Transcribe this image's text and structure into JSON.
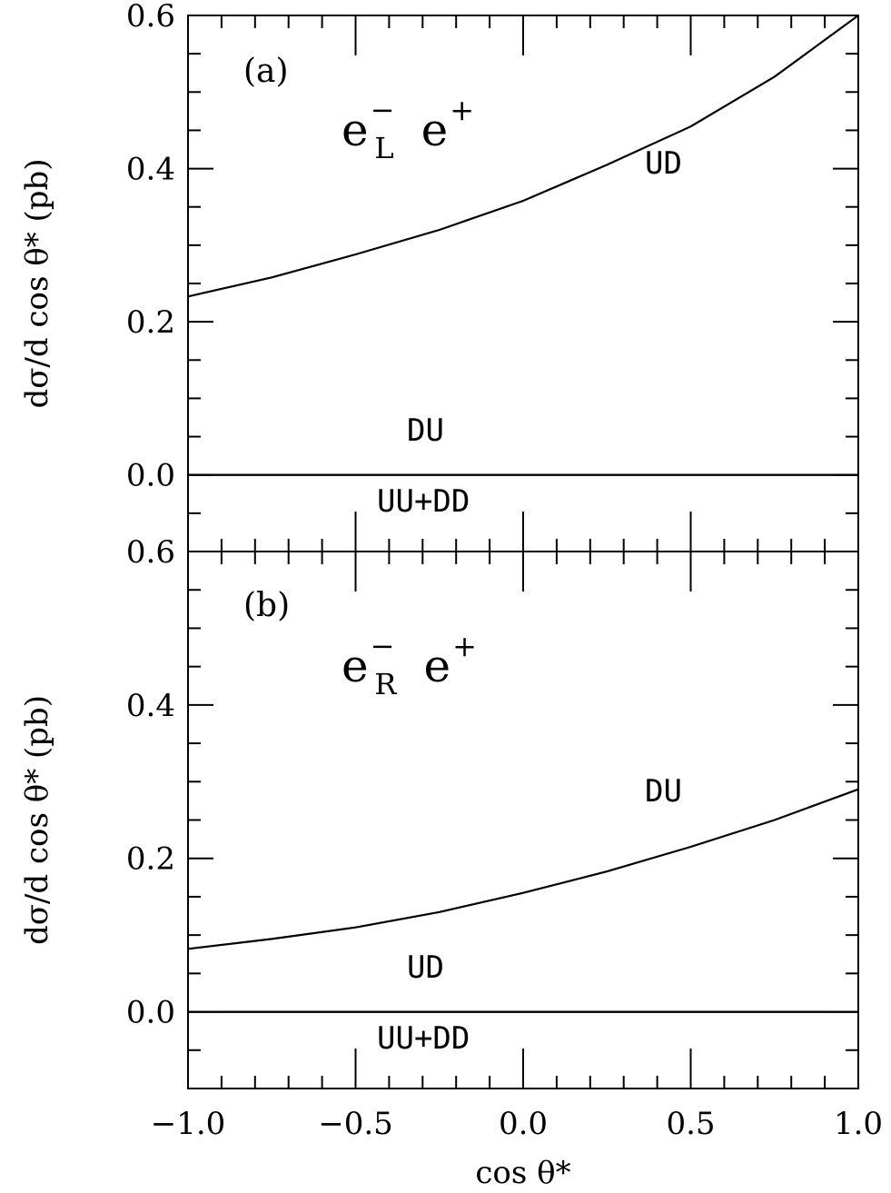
{
  "chart_data": [
    {
      "type": "line",
      "panel_tag": "(a)",
      "process": {
        "electron": "e",
        "polarization": "L",
        "charge": "−",
        "positron": "e",
        "positron_charge": "+"
      },
      "ylabel": "dσ/d cos θ* (pb)",
      "xlabel": "",
      "xlim": [
        -1.0,
        1.0
      ],
      "ylim": [
        -0.1,
        0.6
      ],
      "yticks": [
        "0.0",
        "0.2",
        "0.4",
        "0.6"
      ],
      "xticks": [],
      "series": [
        {
          "name": "UD",
          "x": [
            -1.0,
            -0.75,
            -0.5,
            -0.25,
            0.0,
            0.25,
            0.5,
            0.75,
            1.0
          ],
          "y": [
            0.233,
            0.258,
            0.288,
            0.32,
            0.358,
            0.405,
            0.455,
            0.52,
            0.6
          ]
        },
        {
          "name": "DU",
          "x": [
            -1.0,
            1.0
          ],
          "y": [
            0.0,
            0.0
          ]
        },
        {
          "name": "UU+DD",
          "x": [
            -1.0,
            1.0
          ],
          "y": [
            0.0,
            0.0
          ]
        }
      ]
    },
    {
      "type": "line",
      "panel_tag": "(b)",
      "process": {
        "electron": "e",
        "polarization": "R",
        "charge": "−",
        "positron": "e",
        "positron_charge": "+"
      },
      "ylabel": "dσ/d cos θ* (pb)",
      "xlabel": "cos θ*",
      "xlim": [
        -1.0,
        1.0
      ],
      "ylim": [
        -0.1,
        0.6
      ],
      "yticks": [
        "0.0",
        "0.2",
        "0.4",
        "0.6"
      ],
      "xticks": [
        "−1.0",
        "−0.5",
        "0.0",
        "0.5",
        "1.0"
      ],
      "series": [
        {
          "name": "DU",
          "x": [
            -1.0,
            -0.75,
            -0.5,
            -0.25,
            0.0,
            0.25,
            0.5,
            0.75,
            1.0
          ],
          "y": [
            0.082,
            0.095,
            0.11,
            0.13,
            0.155,
            0.183,
            0.215,
            0.25,
            0.29
          ]
        },
        {
          "name": "UD",
          "x": [
            -1.0,
            1.0
          ],
          "y": [
            0.0,
            0.0
          ]
        },
        {
          "name": "UU+DD",
          "x": [
            -1.0,
            1.0
          ],
          "y": [
            0.0,
            0.0
          ]
        }
      ]
    }
  ]
}
